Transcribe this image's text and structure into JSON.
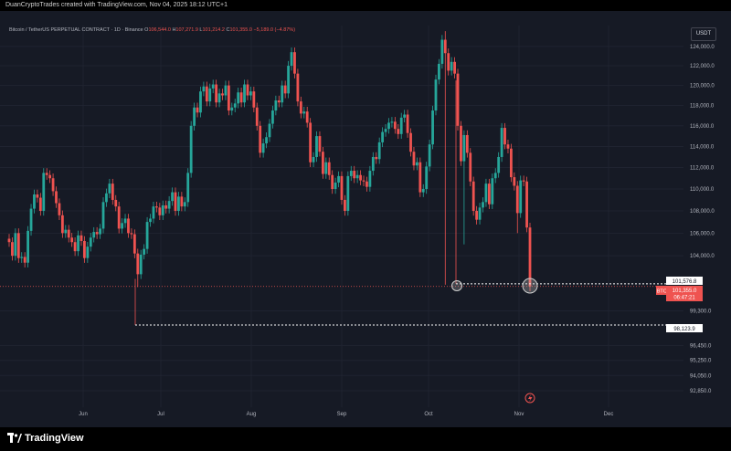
{
  "header": {
    "credit": "DuanCryptoTrades created with TradingView.com, Nov 04, 2025 18:12 UTC+1"
  },
  "legend": {
    "symbol": "Bitcoin / TetherUS PERPETUAL CONTRACT · 1D · Binance",
    "open_label": "O",
    "open": "106,544.0",
    "high_label": "H",
    "high": "107,271.9",
    "low_label": "L",
    "low": "101,214.2",
    "close_label": "C",
    "close": "101,355.0",
    "change": "−5,189.0 (−4.87%)"
  },
  "currency_button": "USDT",
  "price_labels": {
    "level_upper": "101,576.8",
    "ticker": "BTCUSDT.P",
    "last_price": "101,355.0",
    "countdown": "06:47:21",
    "level_lower": "98,123.9"
  },
  "brand": "TradingView",
  "colors": {
    "up": "#26a69a",
    "down": "#ef5350",
    "background": "#161a25",
    "axis_text": "#b2b5be",
    "level_line": "#ffffff"
  },
  "icons": {
    "alert": "lightning-icon",
    "logo": "tradingview-logo-icon"
  },
  "chart_data": {
    "type": "candlestick",
    "title": "",
    "xlabel": "",
    "ylabel": "",
    "scale": "log",
    "ylim": [
      92000,
      126000
    ],
    "y_ticks": [
      {
        "v": 124000,
        "label": "124,000.0"
      },
      {
        "v": 122000,
        "label": "122,000.0"
      },
      {
        "v": 120000,
        "label": "120,000.0"
      },
      {
        "v": 118000,
        "label": "118,000.0"
      },
      {
        "v": 116000,
        "label": "116,000.0"
      },
      {
        "v": 114000,
        "label": "114,000.0"
      },
      {
        "v": 112000,
        "label": "112,000.0"
      },
      {
        "v": 110000,
        "label": "110,000.0"
      },
      {
        "v": 108000,
        "label": "108,000.0"
      },
      {
        "v": 106000,
        "label": "106,000.0"
      },
      {
        "v": 104000,
        "label": "104,000.0"
      },
      {
        "v": 99300,
        "label": "99,300.0"
      },
      {
        "v": 96450,
        "label": "96,450.0"
      },
      {
        "v": 95250,
        "label": "95,250.0"
      },
      {
        "v": 94050,
        "label": "94,050.0"
      },
      {
        "v": 92850,
        "label": "92,850.0"
      }
    ],
    "x_ticks": [
      "Jun",
      "Jul",
      "Aug",
      "Sep",
      "Oct",
      "Nov",
      "Dec"
    ],
    "horizontal_levels": [
      101576.8,
      98123.9,
      101355.0
    ],
    "points": [
      [
        105500,
        105200
      ],
      [
        105200,
        104000
      ],
      [
        104000,
        106000
      ],
      [
        106000,
        103800
      ],
      [
        103800,
        103900
      ],
      [
        103900,
        103400
      ],
      [
        103400,
        106200
      ],
      [
        106200,
        108200
      ],
      [
        108200,
        109500
      ],
      [
        109500,
        109200
      ],
      [
        109200,
        108000
      ],
      [
        108000,
        111500
      ],
      [
        111500,
        111300
      ],
      [
        111300,
        111000
      ],
      [
        111000,
        109800
      ],
      [
        109800,
        108700
      ],
      [
        108700,
        107600
      ],
      [
        107600,
        106000
      ],
      [
        106000,
        106300
      ],
      [
        106300,
        105600
      ],
      [
        105600,
        105200
      ],
      [
        105200,
        104400
      ],
      [
        104400,
        105800
      ],
      [
        105800,
        105300
      ],
      [
        105300,
        103800
      ],
      [
        103800,
        104800
      ],
      [
        104800,
        105600
      ],
      [
        105600,
        106100
      ],
      [
        106100,
        105900
      ],
      [
        105900,
        106400
      ],
      [
        106400,
        108800
      ],
      [
        108800,
        109600
      ],
      [
        109600,
        110500
      ],
      [
        110500,
        109000
      ],
      [
        109000,
        108400
      ],
      [
        108400,
        106400
      ],
      [
        106400,
        106900
      ],
      [
        106900,
        107300
      ],
      [
        107300,
        106000
      ],
      [
        106000,
        105900
      ],
      [
        105900,
        104200
      ],
      [
        104200,
        102400
      ],
      [
        102400,
        104100
      ],
      [
        104100,
        104600
      ],
      [
        104600,
        107000
      ],
      [
        107000,
        107300
      ],
      [
        107300,
        108400
      ],
      [
        108400,
        108300
      ],
      [
        108300,
        107600
      ],
      [
        107600,
        108500
      ],
      [
        108500,
        108200
      ],
      [
        108200,
        108900
      ],
      [
        108900,
        109700
      ],
      [
        109700,
        108000
      ],
      [
        108000,
        109300
      ],
      [
        109300,
        108400
      ],
      [
        108400,
        108800
      ],
      [
        108800,
        111500
      ],
      [
        111500,
        116000
      ],
      [
        116000,
        117800
      ],
      [
        117800,
        117300
      ],
      [
        117300,
        119400
      ],
      [
        119400,
        119900
      ],
      [
        119900,
        118400
      ],
      [
        118400,
        119700
      ],
      [
        119700,
        120100
      ],
      [
        120100,
        118300
      ],
      [
        118300,
        119200
      ],
      [
        119200,
        119000
      ],
      [
        119000,
        120000
      ],
      [
        120000,
        117500
      ],
      [
        117500,
        117800
      ],
      [
        117800,
        118200
      ],
      [
        118200,
        119300
      ],
      [
        119300,
        118300
      ],
      [
        118300,
        120100
      ],
      [
        120100,
        119000
      ],
      [
        119000,
        119400
      ],
      [
        119400,
        117800
      ],
      [
        117800,
        116000
      ],
      [
        116000,
        113400
      ],
      [
        113400,
        114300
      ],
      [
        114300,
        114900
      ],
      [
        114900,
        116200
      ],
      [
        116200,
        117500
      ],
      [
        117500,
        118500
      ],
      [
        118500,
        118300
      ],
      [
        118300,
        120000
      ],
      [
        120000,
        119200
      ],
      [
        119200,
        122000
      ],
      [
        122000,
        123400
      ],
      [
        123400,
        121200
      ],
      [
        121200,
        118400
      ],
      [
        118400,
        117200
      ],
      [
        117200,
        117400
      ],
      [
        117400,
        116300
      ],
      [
        116300,
        112500
      ],
      [
        112500,
        113000
      ],
      [
        113000,
        115000
      ],
      [
        115000,
        113500
      ],
      [
        113500,
        111400
      ],
      [
        111400,
        112500
      ],
      [
        112500,
        111300
      ],
      [
        111300,
        110000
      ],
      [
        110000,
        110600
      ],
      [
        110600,
        111200
      ],
      [
        111200,
        109000
      ],
      [
        109000,
        108000
      ],
      [
        108000,
        111200
      ],
      [
        111200,
        111700
      ],
      [
        111700,
        111000
      ],
      [
        111000,
        111300
      ],
      [
        111300,
        110800
      ],
      [
        110800,
        110700
      ],
      [
        110700,
        110200
      ],
      [
        110200,
        111700
      ],
      [
        111700,
        113000
      ],
      [
        113000,
        112800
      ],
      [
        112800,
        114400
      ],
      [
        114400,
        115400
      ],
      [
        115400,
        115700
      ],
      [
        115700,
        116300
      ],
      [
        116300,
        116400
      ],
      [
        116400,
        115700
      ],
      [
        115700,
        115200
      ],
      [
        115200,
        116800
      ],
      [
        116800,
        117100
      ],
      [
        117100,
        115300
      ],
      [
        115300,
        113500
      ],
      [
        113500,
        112200
      ],
      [
        112200,
        112500
      ],
      [
        112500,
        109700
      ],
      [
        109700,
        110000
      ],
      [
        110000,
        112100
      ],
      [
        112100,
        114200
      ],
      [
        114200,
        117500
      ],
      [
        117500,
        120600
      ],
      [
        120600,
        122200
      ],
      [
        122200,
        124700
      ],
      [
        124700,
        123300
      ],
      [
        123300,
        121500
      ],
      [
        121500,
        122400
      ],
      [
        122400,
        121200
      ],
      [
        121200,
        116000
      ],
      [
        116000,
        112600
      ],
      [
        112600,
        115100
      ],
      [
        115100,
        113400
      ],
      [
        113400,
        110700
      ],
      [
        110700,
        108000
      ],
      [
        108000,
        107200
      ],
      [
        107200,
        108300
      ],
      [
        108300,
        108800
      ],
      [
        108800,
        110500
      ],
      [
        110500,
        108600
      ],
      [
        108600,
        111000
      ],
      [
        111000,
        111500
      ],
      [
        111500,
        113000
      ],
      [
        113000,
        115800
      ],
      [
        115800,
        114200
      ],
      [
        114200,
        113800
      ],
      [
        113800,
        111100
      ],
      [
        111100,
        110300
      ],
      [
        110300,
        107800
      ],
      [
        107800,
        110800
      ],
      [
        110800,
        110700
      ],
      [
        110700,
        106500
      ],
      [
        106500,
        101355
      ]
    ]
  }
}
